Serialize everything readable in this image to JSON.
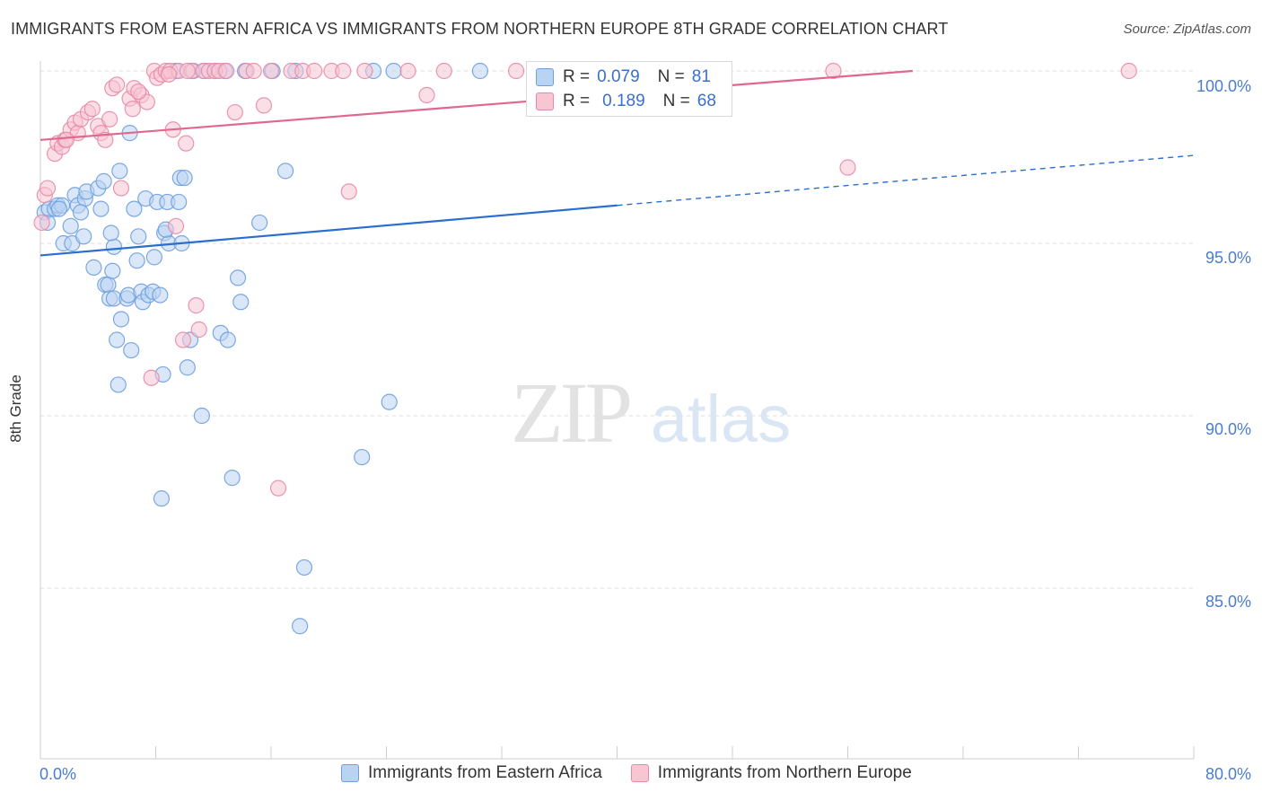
{
  "header": {
    "title": "IMMIGRANTS FROM EASTERN AFRICA VS IMMIGRANTS FROM NORTHERN EUROPE 8TH GRADE CORRELATION CHART",
    "source": "Source: ZipAtlas.com"
  },
  "stats": {
    "blue": {
      "r_label": "R =",
      "r_value": "0.079",
      "n_label": "N =",
      "n_value": "81"
    },
    "pink": {
      "r_label": "R =",
      "r_value": "0.189",
      "n_label": "N =",
      "n_value": "68"
    }
  },
  "legend": {
    "blue_label": "Immigrants from Eastern Africa",
    "pink_label": "Immigrants from Northern Europe"
  },
  "watermark": {
    "zip": "ZIP",
    "atlas": "atlas"
  },
  "colors": {
    "blue": "#6f9fde",
    "blue_fill": "#b9d3f3",
    "blue_line": "#2a6fcf",
    "pink": "#e88aa7",
    "pink_fill": "#f8c5d3",
    "pink_line": "#e0688f",
    "grid": "#dddddd"
  },
  "chart_data": {
    "type": "scatter",
    "title": "IMMIGRANTS FROM EASTERN AFRICA VS IMMIGRANTS FROM NORTHERN EUROPE 8TH GRADE CORRELATION CHART",
    "xlabel": "",
    "ylabel": "8th Grade",
    "xlim": [
      0,
      80
    ],
    "ylim": [
      80.5,
      100.8
    ],
    "x_tick_labels": [
      "0.0%",
      "80.0%"
    ],
    "y_ticks": [
      85,
      90,
      95,
      100
    ],
    "y_tick_labels": [
      "85.0%",
      "90.0%",
      "95.0%",
      "100.0%"
    ],
    "legend_position": "bottom",
    "series": [
      {
        "name": "Immigrants from Eastern Africa",
        "color": "blue",
        "trend": {
          "x0": 0,
          "y0": 94.65,
          "x1": 40,
          "y1": 96.1,
          "dash_to_x": 80,
          "dash_to_y": 97.55
        },
        "points": [
          [
            0.3,
            95.9
          ],
          [
            0.5,
            95.6
          ],
          [
            0.6,
            96.0
          ],
          [
            1.0,
            96.0
          ],
          [
            1.2,
            96.1
          ],
          [
            1.5,
            96.1
          ],
          [
            1.6,
            95.0
          ],
          [
            2.1,
            95.5
          ],
          [
            2.2,
            95.0
          ],
          [
            2.4,
            96.4
          ],
          [
            2.6,
            96.1
          ],
          [
            3.1,
            96.3
          ],
          [
            3.2,
            96.5
          ],
          [
            3.0,
            95.2
          ],
          [
            3.7,
            94.3
          ],
          [
            4.0,
            96.6
          ],
          [
            4.2,
            96.0
          ],
          [
            4.4,
            96.8
          ],
          [
            4.5,
            93.8
          ],
          [
            4.7,
            93.8
          ],
          [
            4.8,
            93.4
          ],
          [
            5.0,
            94.2
          ],
          [
            5.1,
            94.9
          ],
          [
            5.1,
            93.4
          ],
          [
            5.3,
            92.2
          ],
          [
            5.4,
            90.9
          ],
          [
            5.5,
            97.1
          ],
          [
            5.6,
            92.8
          ],
          [
            6.0,
            93.4
          ],
          [
            6.1,
            93.5
          ],
          [
            6.2,
            98.2
          ],
          [
            6.3,
            91.9
          ],
          [
            6.5,
            96.0
          ],
          [
            6.7,
            94.5
          ],
          [
            6.8,
            95.2
          ],
          [
            7.0,
            93.6
          ],
          [
            7.1,
            93.3
          ],
          [
            7.3,
            96.3
          ],
          [
            7.5,
            93.5
          ],
          [
            7.8,
            93.6
          ],
          [
            7.9,
            94.6
          ],
          [
            8.1,
            96.2
          ],
          [
            8.3,
            93.5
          ],
          [
            8.4,
            87.6
          ],
          [
            8.5,
            91.2
          ],
          [
            8.6,
            95.3
          ],
          [
            8.8,
            96.2
          ],
          [
            8.9,
            95.0
          ],
          [
            9.4,
            100.0
          ],
          [
            9.7,
            96.9
          ],
          [
            9.8,
            95.0
          ],
          [
            10.0,
            96.9
          ],
          [
            10.2,
            91.4
          ],
          [
            10.4,
            92.2
          ],
          [
            10.6,
            100.0
          ],
          [
            11.2,
            90.0
          ],
          [
            12.1,
            100.0
          ],
          [
            12.5,
            92.4
          ],
          [
            12.8,
            100.0
          ],
          [
            13.0,
            92.2
          ],
          [
            13.3,
            88.2
          ],
          [
            13.7,
            94.0
          ],
          [
            13.9,
            93.3
          ],
          [
            14.2,
            100.0
          ],
          [
            15.2,
            95.6
          ],
          [
            16.1,
            100.0
          ],
          [
            17.0,
            97.1
          ],
          [
            17.7,
            100.0
          ],
          [
            18.3,
            85.6
          ],
          [
            18.0,
            83.9
          ],
          [
            22.3,
            88.8
          ],
          [
            23.1,
            100.0
          ],
          [
            24.2,
            90.4
          ],
          [
            24.5,
            100.0
          ],
          [
            30.5,
            100.0
          ],
          [
            11.4,
            100.0
          ],
          [
            9.6,
            96.2
          ],
          [
            8.7,
            95.4
          ],
          [
            2.8,
            95.9
          ],
          [
            1.3,
            96.0
          ],
          [
            4.9,
            95.3
          ]
        ]
      },
      {
        "name": "Immigrants from Northern Europe",
        "color": "pink",
        "trend": {
          "x0": 0,
          "y0": 98.0,
          "x1": 60.5,
          "y1": 100.0
        },
        "points": [
          [
            0.1,
            95.6
          ],
          [
            0.3,
            96.4
          ],
          [
            0.5,
            96.6
          ],
          [
            1.0,
            97.6
          ],
          [
            1.2,
            97.9
          ],
          [
            1.5,
            97.8
          ],
          [
            1.7,
            98.0
          ],
          [
            2.1,
            98.3
          ],
          [
            2.4,
            98.5
          ],
          [
            2.6,
            98.2
          ],
          [
            2.8,
            98.6
          ],
          [
            3.3,
            98.8
          ],
          [
            3.6,
            98.9
          ],
          [
            4.0,
            98.4
          ],
          [
            4.2,
            98.2
          ],
          [
            4.5,
            98.0
          ],
          [
            4.8,
            98.6
          ],
          [
            5.0,
            99.5
          ],
          [
            5.3,
            99.6
          ],
          [
            5.6,
            96.6
          ],
          [
            6.2,
            99.2
          ],
          [
            6.4,
            98.9
          ],
          [
            6.5,
            99.5
          ],
          [
            7.0,
            99.3
          ],
          [
            7.4,
            99.1
          ],
          [
            7.7,
            91.1
          ],
          [
            7.9,
            100.0
          ],
          [
            8.1,
            99.8
          ],
          [
            8.4,
            99.9
          ],
          [
            8.7,
            100.0
          ],
          [
            9.0,
            100.0
          ],
          [
            9.2,
            98.3
          ],
          [
            9.4,
            95.5
          ],
          [
            9.6,
            100.0
          ],
          [
            9.9,
            92.2
          ],
          [
            10.1,
            97.9
          ],
          [
            10.5,
            100.0
          ],
          [
            10.8,
            93.2
          ],
          [
            11.0,
            92.5
          ],
          [
            11.3,
            100.0
          ],
          [
            11.7,
            100.0
          ],
          [
            12.1,
            100.0
          ],
          [
            12.4,
            100.0
          ],
          [
            12.9,
            100.0
          ],
          [
            13.5,
            98.8
          ],
          [
            14.3,
            100.0
          ],
          [
            14.8,
            100.0
          ],
          [
            15.5,
            99.0
          ],
          [
            16.0,
            100.0
          ],
          [
            16.5,
            87.9
          ],
          [
            17.4,
            100.0
          ],
          [
            18.2,
            100.0
          ],
          [
            19.0,
            100.0
          ],
          [
            20.2,
            100.0
          ],
          [
            21.0,
            100.0
          ],
          [
            21.4,
            96.5
          ],
          [
            22.5,
            100.0
          ],
          [
            25.5,
            100.0
          ],
          [
            26.8,
            99.3
          ],
          [
            28.0,
            100.0
          ],
          [
            33.0,
            100.0
          ],
          [
            55.0,
            100.0
          ],
          [
            56.0,
            97.2
          ],
          [
            75.5,
            100.0
          ],
          [
            1.8,
            98.0
          ],
          [
            6.8,
            99.4
          ],
          [
            8.9,
            99.9
          ],
          [
            10.2,
            100.0
          ]
        ]
      }
    ]
  }
}
